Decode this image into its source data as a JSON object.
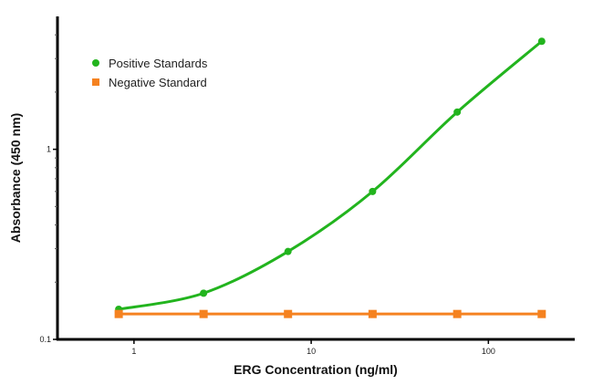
{
  "chart_data": {
    "type": "line",
    "xlabel": "ERG Concentration (ng/ml)",
    "ylabel": "Absorbance (450 nm)",
    "xscale": "log",
    "yscale": "log",
    "xlim": [
      0.37,
      300
    ],
    "ylim": [
      0.1,
      5
    ],
    "x_ticks": [
      {
        "v": 1,
        "label": "1"
      },
      {
        "v": 10,
        "label": "10"
      },
      {
        "v": 100,
        "label": "100"
      }
    ],
    "y_ticks": [
      {
        "v": 0.1,
        "label": "0.1"
      },
      {
        "v": 1,
        "label": "1"
      }
    ],
    "grid": false,
    "legend_position": "top-left",
    "x": [
      0.82,
      2.47,
      7.4,
      22.2,
      66.7,
      200
    ],
    "series": [
      {
        "name": "Positive Standards",
        "color": "#22b41e",
        "marker": "circle",
        "smooth": true,
        "values": [
          0.144,
          0.175,
          0.29,
          0.6,
          1.57,
          3.7
        ]
      },
      {
        "name": "Negative Standard",
        "color": "#f58220",
        "marker": "square",
        "smooth": false,
        "values": [
          0.136,
          0.136,
          0.136,
          0.136,
          0.136,
          0.136
        ]
      }
    ]
  }
}
